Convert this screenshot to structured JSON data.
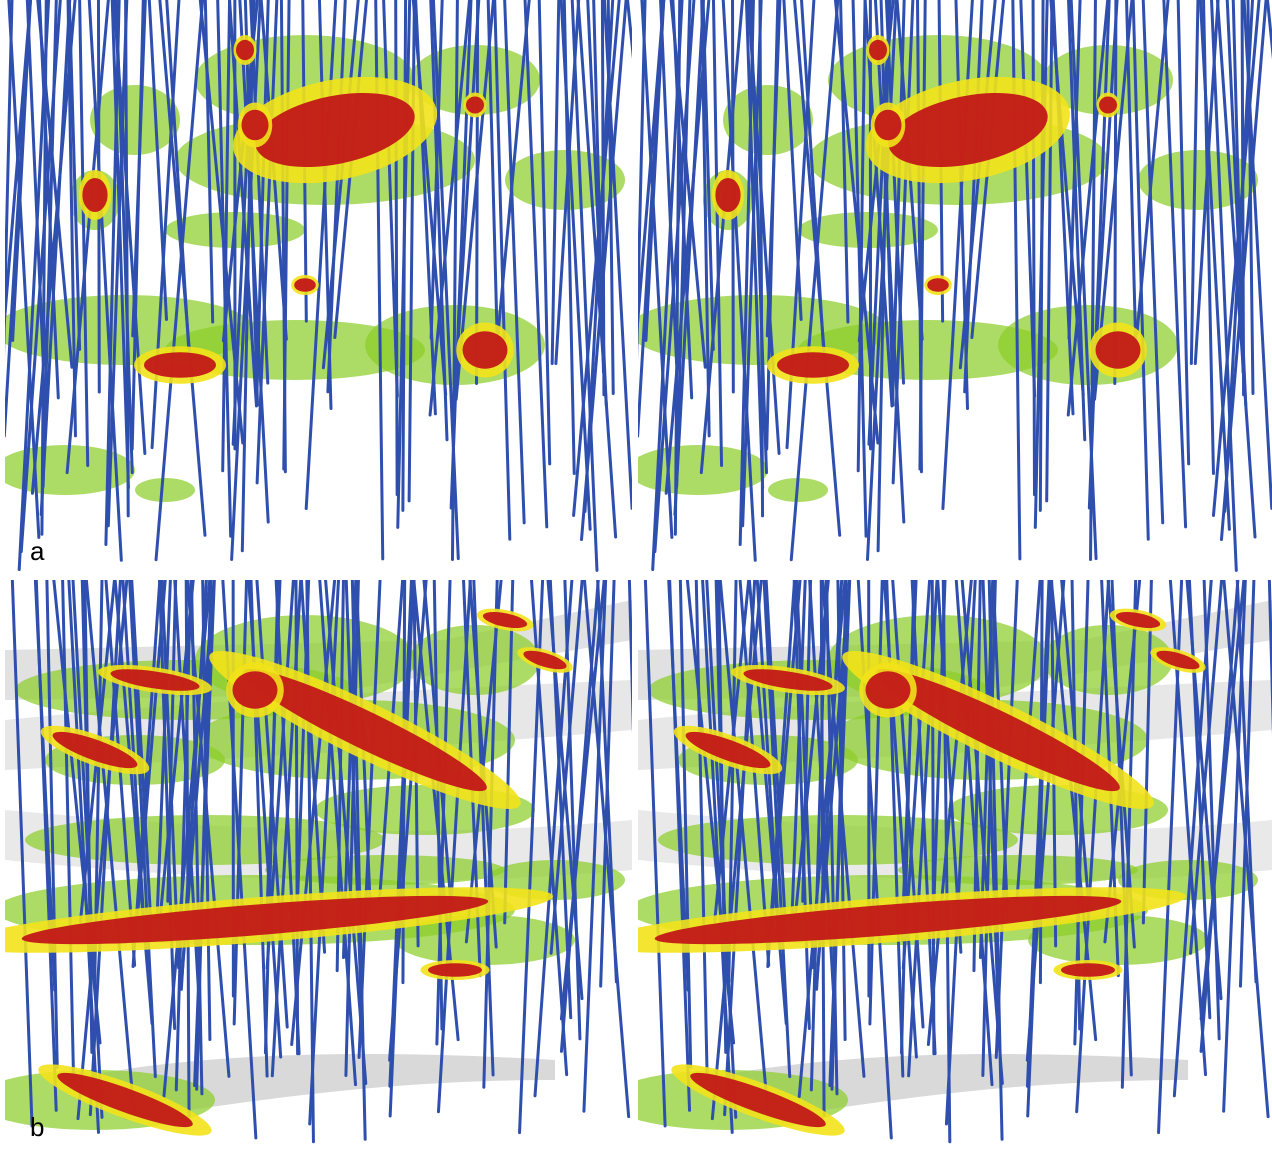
{
  "figure": {
    "rows": [
      {
        "label": "a",
        "panels": [
          "left",
          "right"
        ]
      },
      {
        "label": "b",
        "panels": [
          "left",
          "right"
        ]
      }
    ]
  },
  "colors": {
    "drillhole": "#2f4fae",
    "shell_low": "#8ccf2a",
    "shell_mid": "#f2e21a",
    "shell_high": "#c21818",
    "surface": "#c9c9c9"
  }
}
